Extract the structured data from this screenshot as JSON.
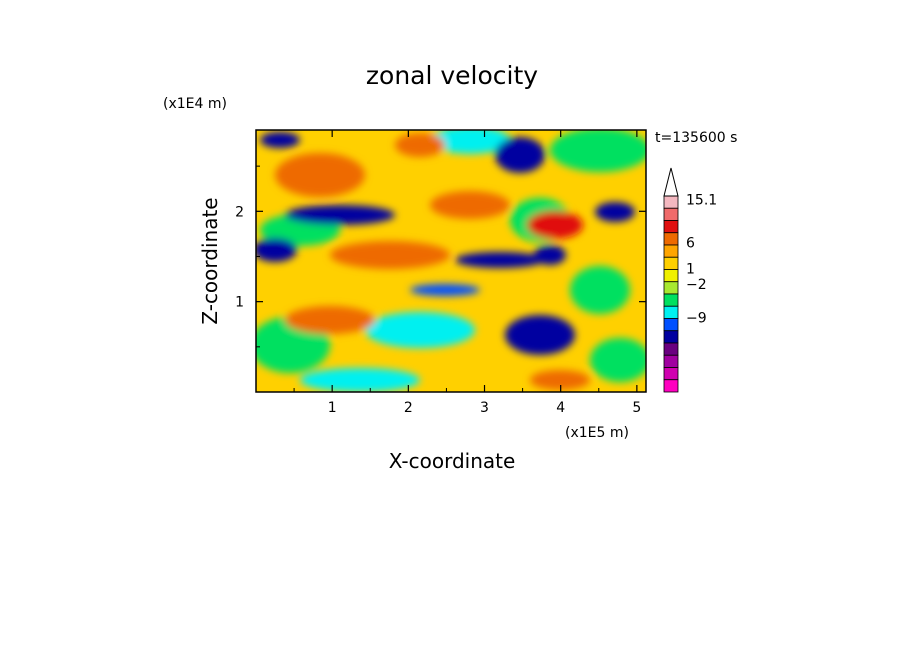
{
  "chart_data": {
    "type": "heatmap",
    "title": "zonal velocity",
    "xlabel": "X-coordinate",
    "ylabel": "Z-coordinate",
    "x_scale_label": "(x1E5 m)",
    "y_scale_label": "(x1E4 m)",
    "time_label": "t=135600 s",
    "xlim": [
      0,
      5.12
    ],
    "ylim": [
      0,
      2.9
    ],
    "x_ticks": [
      "1",
      "2",
      "3",
      "4",
      "5"
    ],
    "y_ticks": [
      "1",
      "2"
    ],
    "x_tick_values": [
      1,
      2,
      3,
      4,
      5
    ],
    "y_tick_values": [
      1,
      2
    ],
    "colorbar": {
      "labels": [
        "15.1",
        "6",
        "1",
        "−2",
        "−9"
      ],
      "colors": [
        "#f4b8c0",
        "#f06a6a",
        "#e01010",
        "#ee6a00",
        "#ffa500",
        "#ffd000",
        "#f0f000",
        "#a8e830",
        "#00e060",
        "#00f0f0",
        "#0050ff",
        "#0000a0",
        "#6a0080",
        "#a000a0",
        "#d000b0",
        "#ff00c0"
      ],
      "orientation": "vertical",
      "extend": "max"
    }
  },
  "colors": {
    "background_field": "#ffd700"
  }
}
